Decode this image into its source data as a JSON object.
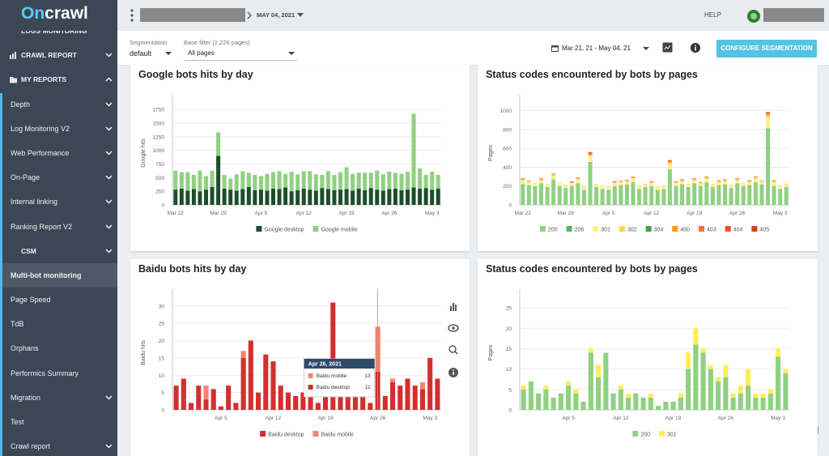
{
  "header": {
    "logo_on": "On",
    "logo_crawl": "crawl",
    "date": "MAY 04, 2021",
    "help": "HELP"
  },
  "sidebar": {
    "items": [
      {
        "label": "LOGS MONITORING"
      },
      {
        "label": "CRAWL REPORT",
        "icon": "chart",
        "chevron": "down"
      },
      {
        "label": "MY REPORTS",
        "icon": "folder",
        "chevron": "up"
      },
      {
        "label": "Depth",
        "chevron": "down"
      },
      {
        "label": "Log Monitoring V2",
        "chevron": "down"
      },
      {
        "label": "Web Performance",
        "chevron": "down"
      },
      {
        "label": "On-Page",
        "chevron": "down"
      },
      {
        "label": "Internal linking",
        "chevron": "down"
      },
      {
        "label": "Ranking Report V2",
        "chevron": "down"
      },
      {
        "label": "CSM",
        "chevron": "down"
      },
      {
        "label": "Multi-bot monitoring",
        "active": true
      },
      {
        "label": "Page Speed"
      },
      {
        "label": "TdB"
      },
      {
        "label": "Orphans"
      },
      {
        "label": "Performics Summary"
      },
      {
        "label": "Migration",
        "chevron": "down"
      },
      {
        "label": "Test"
      },
      {
        "label": "Crawl report",
        "chevron": "down"
      }
    ]
  },
  "toolbar": {
    "segmentation_label": "Segmentation",
    "segmentation_value": "default",
    "filter_label": "Base filter (2,226 pages)",
    "filter_value": "All pages",
    "date_range": "Mar 21, 21 - May 04, 21",
    "button": "CONFIGURE SEGMENTATION"
  },
  "chart_data": [
    {
      "type": "bar",
      "stacked": true,
      "grid": true,
      "legend": "bottom",
      "title": "Google bots hits by day",
      "y_label": "Google hits",
      "categories": [
        "Mar 22",
        null,
        null,
        null,
        null,
        null,
        null,
        "Mar 29",
        null,
        null,
        null,
        null,
        null,
        null,
        "Apr 5",
        null,
        null,
        null,
        null,
        null,
        null,
        "Apr 12",
        null,
        null,
        null,
        null,
        null,
        null,
        "Apr 19",
        null,
        null,
        null,
        null,
        null,
        null,
        "Apr 26",
        null,
        null,
        null,
        null,
        null,
        null,
        "May 3",
        null
      ],
      "series": [
        {
          "name": "Google desktop",
          "color": "#1d4d2b",
          "values": [
            280,
            300,
            260,
            290,
            250,
            280,
            330,
            900,
            300,
            280,
            260,
            290,
            330,
            270,
            280,
            260,
            300,
            290,
            320,
            250,
            270,
            300,
            280,
            260,
            310,
            290,
            270,
            280,
            290,
            260,
            300,
            270,
            310,
            280,
            260,
            290,
            300,
            270,
            280,
            320,
            300,
            310,
            280,
            300
          ]
        },
        {
          "name": "Google mobile",
          "color": "#8fd182",
          "values": [
            350,
            300,
            340,
            260,
            380,
            250,
            300,
            430,
            250,
            200,
            300,
            330,
            260,
            280,
            250,
            310,
            300,
            330,
            250,
            360,
            290,
            320,
            340,
            300,
            240,
            330,
            280,
            320,
            400,
            310,
            290,
            320,
            280,
            350,
            300,
            320,
            290,
            300,
            330,
            1350,
            370,
            240,
            330,
            250
          ]
        }
      ],
      "ylim": [
        0,
        1900
      ],
      "yticks": [
        0,
        250,
        500,
        750,
        1000,
        1250,
        1500,
        1750
      ]
    },
    {
      "type": "bar",
      "stacked": true,
      "grid": true,
      "legend": "bottom",
      "title": "Status codes encountered by bots by pages",
      "y_label": "Pages",
      "categories": [
        "Mar 22",
        null,
        null,
        null,
        null,
        null,
        null,
        "Mar 29",
        null,
        null,
        null,
        null,
        null,
        null,
        "Apr 5",
        null,
        null,
        null,
        null,
        null,
        null,
        "Apr 12",
        null,
        null,
        null,
        null,
        null,
        null,
        "Apr 19",
        null,
        null,
        null,
        null,
        null,
        null,
        "Apr 26",
        null,
        null,
        null,
        null,
        null,
        null,
        "May 3",
        null
      ],
      "series": [
        {
          "name": "200",
          "color": "#8fd182",
          "values": [
            220,
            210,
            200,
            230,
            190,
            270,
            200,
            180,
            200,
            230,
            160,
            450,
            190,
            170,
            160,
            200,
            210,
            220,
            240,
            170,
            190,
            200,
            160,
            170,
            370,
            200,
            220,
            190,
            230,
            200,
            240,
            190,
            210,
            220,
            180,
            230,
            200,
            210,
            240,
            220,
            800,
            200,
            170,
            190
          ]
        },
        {
          "name": "206",
          "color": "#5cb85c",
          "values": [
            0,
            0,
            0,
            0,
            0,
            0,
            0,
            0,
            0,
            0,
            0,
            5,
            0,
            0,
            0,
            0,
            0,
            0,
            0,
            0,
            0,
            0,
            0,
            0,
            5,
            0,
            0,
            0,
            0,
            0,
            0,
            0,
            0,
            0,
            0,
            0,
            0,
            0,
            0,
            0,
            10,
            0,
            0,
            0
          ]
        },
        {
          "name": "301",
          "color": "#fff08a",
          "values": [
            40,
            30,
            30,
            30,
            25,
            40,
            30,
            30,
            30,
            40,
            30,
            60,
            30,
            25,
            30,
            30,
            30,
            30,
            40,
            30,
            30,
            30,
            30,
            30,
            60,
            30,
            30,
            30,
            30,
            30,
            40,
            30,
            30,
            30,
            30,
            30,
            30,
            30,
            40,
            30,
            120,
            40,
            30,
            30
          ]
        },
        {
          "name": "302",
          "color": "#ffd54f",
          "values": [
            10,
            10,
            5,
            10,
            5,
            10,
            5,
            5,
            10,
            10,
            5,
            15,
            5,
            5,
            5,
            10,
            10,
            5,
            10,
            5,
            5,
            10,
            5,
            5,
            15,
            10,
            10,
            5,
            10,
            5,
            10,
            5,
            10,
            10,
            5,
            10,
            5,
            10,
            10,
            5,
            20,
            10,
            5,
            5
          ]
        },
        {
          "name": "304",
          "color": "#43a047",
          "values": [
            0,
            0,
            0,
            0,
            0,
            0,
            0,
            0,
            0,
            0,
            0,
            0,
            0,
            0,
            0,
            0,
            0,
            0,
            0,
            0,
            0,
            0,
            0,
            0,
            0,
            0,
            0,
            0,
            0,
            0,
            0,
            0,
            0,
            0,
            0,
            0,
            0,
            0,
            0,
            0,
            5,
            0,
            0,
            0
          ]
        },
        {
          "name": "400",
          "color": "#ff9800",
          "values": [
            5,
            0,
            0,
            5,
            0,
            5,
            0,
            0,
            5,
            5,
            0,
            10,
            0,
            0,
            0,
            5,
            0,
            5,
            5,
            0,
            0,
            5,
            0,
            0,
            10,
            5,
            5,
            0,
            5,
            0,
            5,
            0,
            5,
            5,
            0,
            5,
            0,
            5,
            5,
            0,
            10,
            5,
            0,
            0
          ]
        },
        {
          "name": "403",
          "color": "#ff6f3c",
          "values": [
            0,
            0,
            0,
            0,
            0,
            0,
            0,
            0,
            0,
            0,
            0,
            5,
            0,
            0,
            0,
            0,
            0,
            0,
            0,
            0,
            0,
            0,
            0,
            0,
            5,
            0,
            0,
            0,
            0,
            0,
            0,
            0,
            0,
            0,
            0,
            0,
            0,
            0,
            0,
            0,
            5,
            0,
            0,
            0
          ]
        },
        {
          "name": "404",
          "color": "#f4511e",
          "values": [
            5,
            5,
            0,
            5,
            0,
            5,
            0,
            0,
            5,
            5,
            0,
            10,
            0,
            0,
            0,
            5,
            5,
            5,
            5,
            0,
            0,
            5,
            0,
            0,
            10,
            5,
            5,
            0,
            5,
            5,
            5,
            0,
            5,
            5,
            0,
            5,
            0,
            5,
            5,
            5,
            10,
            5,
            0,
            0
          ]
        },
        {
          "name": "405",
          "color": "#d84315",
          "values": [
            0,
            0,
            0,
            0,
            0,
            0,
            0,
            0,
            0,
            0,
            0,
            5,
            0,
            0,
            0,
            0,
            0,
            0,
            0,
            0,
            0,
            0,
            0,
            0,
            0,
            0,
            0,
            0,
            0,
            0,
            0,
            0,
            0,
            0,
            0,
            0,
            0,
            0,
            0,
            0,
            5,
            0,
            0,
            0
          ]
        }
      ],
      "ylim": [
        0,
        1100
      ],
      "yticks": [
        0,
        200,
        400,
        600,
        800,
        1000
      ]
    },
    {
      "type": "bar",
      "stacked": true,
      "grid": true,
      "legend": "bottom",
      "title": "Baidu bots hits by day",
      "y_label": "Baidu hits",
      "categories": [
        null,
        null,
        null,
        null,
        null,
        null,
        "Apr 5",
        null,
        null,
        null,
        null,
        null,
        null,
        "Apr 12",
        null,
        null,
        null,
        null,
        null,
        null,
        "Apr 19",
        null,
        null,
        null,
        null,
        null,
        null,
        "Apr 26",
        null,
        null,
        null,
        null,
        null,
        null,
        "May 3",
        null
      ],
      "series": [
        {
          "name": "Baidu desktop",
          "color": "#d32f2f",
          "values": [
            7,
            9,
            2,
            7,
            3,
            6,
            1,
            7,
            2,
            15,
            20,
            5,
            16,
            14,
            7,
            5,
            4,
            5,
            5,
            2,
            4,
            31,
            7,
            6,
            5,
            6,
            2,
            11,
            4,
            8,
            7,
            9,
            7,
            6,
            15,
            9
          ]
        },
        {
          "name": "Baidu mobile",
          "color": "#f7836d",
          "values": [
            0,
            0,
            0,
            0,
            4,
            0,
            0,
            0,
            0,
            2,
            0,
            0,
            0,
            0,
            0,
            0,
            0,
            0,
            0,
            0,
            2,
            0,
            0,
            1,
            0,
            0,
            0,
            13,
            0,
            1,
            0,
            0,
            0,
            2,
            0,
            0
          ]
        }
      ],
      "ylim": [
        0,
        33
      ],
      "yticks": [
        0,
        5,
        10,
        15,
        20,
        25,
        30
      ],
      "tooltip": {
        "title": "Apr 26, 2021",
        "rows": [
          {
            "name": "Baidu mobile",
            "value": 13
          },
          {
            "name": "Baidu desktop",
            "value": 11
          }
        ]
      }
    },
    {
      "type": "bar",
      "stacked": true,
      "grid": true,
      "legend": "bottom",
      "title": "Status codes encountered by bots by pages",
      "y_label": "Pages",
      "categories": [
        null,
        null,
        null,
        null,
        null,
        null,
        "Apr 5",
        null,
        null,
        null,
        null,
        null,
        null,
        "Apr 12",
        null,
        null,
        null,
        null,
        null,
        null,
        "Apr 19",
        null,
        null,
        null,
        null,
        null,
        null,
        "Apr 26",
        null,
        null,
        null,
        null,
        null,
        null,
        "May 3",
        null
      ],
      "series": [
        {
          "name": "200",
          "color": "#8fd182",
          "values": [
            5,
            7,
            4,
            5,
            3,
            4,
            6,
            4,
            2,
            14,
            8,
            14,
            4,
            5,
            3,
            4,
            3,
            3,
            1,
            2,
            2,
            3,
            10,
            16,
            14,
            10,
            7,
            8,
            3,
            4,
            6,
            3,
            3,
            4,
            13,
            9
          ]
        },
        {
          "name": "301",
          "color": "#ffee58",
          "values": [
            1,
            0,
            0,
            1,
            0,
            0,
            1,
            1,
            0,
            1,
            3,
            0,
            0,
            1,
            1,
            0,
            0,
            1,
            0,
            0,
            0,
            1,
            4,
            4,
            1,
            1,
            1,
            3,
            1,
            2,
            4,
            1,
            1,
            1,
            2,
            1
          ]
        }
      ],
      "ylim": [
        0,
        28
      ],
      "yticks": [
        0,
        5,
        10,
        15,
        20,
        25
      ]
    }
  ]
}
